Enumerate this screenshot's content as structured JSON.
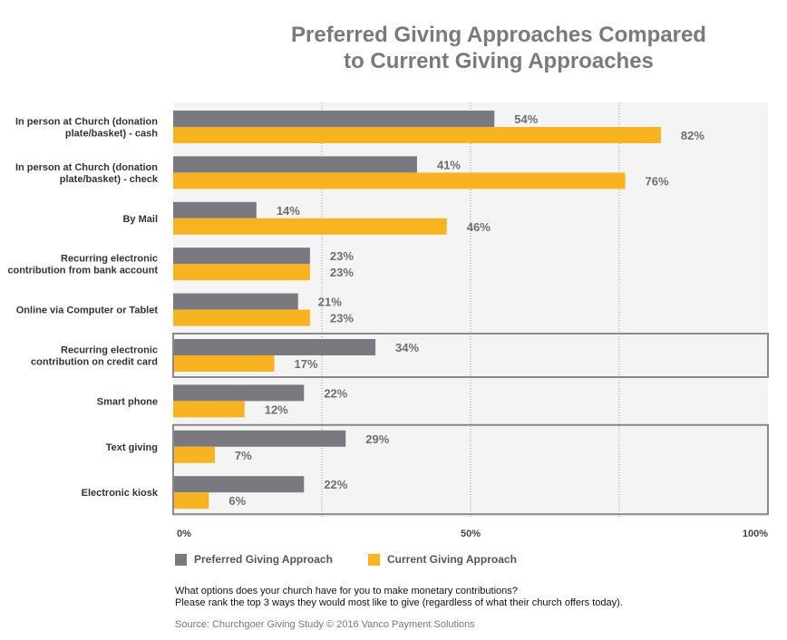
{
  "chart_data": {
    "type": "bar",
    "orientation": "horizontal",
    "title_lines": [
      "Preferred Giving Approaches Compared",
      "to Current Giving Approaches"
    ],
    "categories": [
      [
        "In person at Church (donation",
        "plate/basket) - cash"
      ],
      [
        "In person at Church (donation",
        "plate/basket) - check"
      ],
      [
        "By Mail"
      ],
      [
        "Recurring electronic",
        "contribution from bank account"
      ],
      [
        "Online via Computer or Tablet"
      ],
      [
        "Recurring electronic",
        "contribution on credit card"
      ],
      [
        "Smart phone"
      ],
      [
        "Text giving"
      ],
      [
        "Electronic kiosk"
      ]
    ],
    "series": [
      {
        "name": "Preferred Giving Approach",
        "color": "#7b7980",
        "values": [
          54,
          41,
          14,
          23,
          21,
          34,
          22,
          29,
          22
        ]
      },
      {
        "name": "Current Giving Approach",
        "color": "#f7b420",
        "values": [
          82,
          76,
          46,
          23,
          23,
          17,
          12,
          7,
          6
        ]
      }
    ],
    "value_labels": {
      "preferred": [
        "54%",
        "41%",
        "14%",
        "23%",
        "21%",
        "34%",
        "22%",
        "29%",
        "22%"
      ],
      "current": [
        "82%",
        "76%",
        "46%",
        "23%",
        "23%",
        "17%",
        "12%",
        "7%",
        "6%"
      ]
    },
    "x_ticks": [
      "0%",
      "50%",
      "100%"
    ],
    "xlim": [
      0,
      100
    ],
    "highlighted_categories": [
      [
        5
      ],
      [
        7,
        8
      ]
    ],
    "legend_position": "bottom-left"
  },
  "footnotes": [
    "What options does your church have for you to make monetary contributions?",
    "Please rank the top 3 ways they would most like to give (regardless of what their church offers today)."
  ],
  "source": "Source: Churchgoer Giving Study © 2016 Vanco Payment Solutions"
}
